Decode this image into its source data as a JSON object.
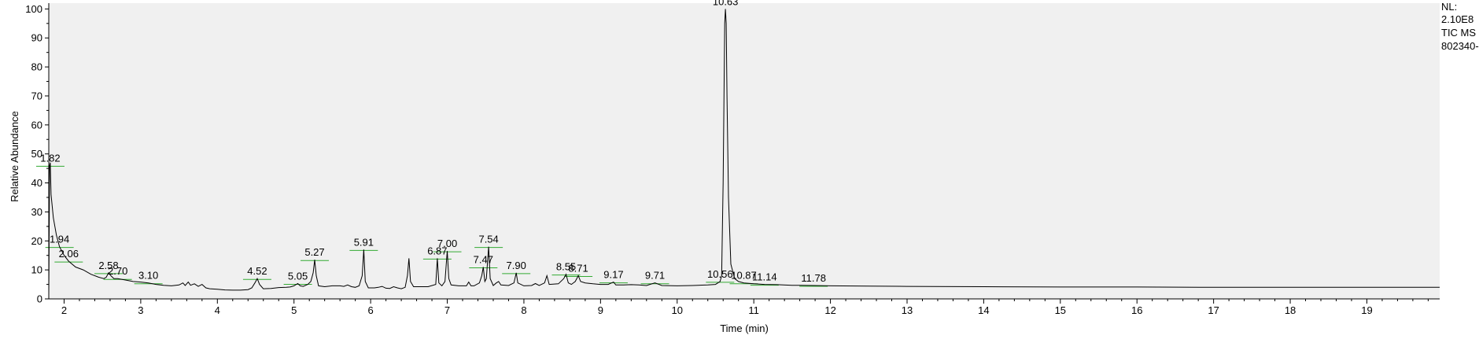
{
  "chart_data": {
    "type": "line",
    "xlabel": "Time (min)",
    "ylabel": "Relative Abundance",
    "xlim": [
      1.8,
      19.95
    ],
    "ylim": [
      0,
      102
    ],
    "x_ticks": [
      "2",
      "3",
      "4",
      "5",
      "6",
      "7",
      "8",
      "9",
      "10",
      "11",
      "12",
      "13",
      "14",
      "15",
      "16",
      "17",
      "18",
      "19"
    ],
    "y_ticks": [
      "0",
      "10",
      "20",
      "30",
      "40",
      "50",
      "60",
      "70",
      "80",
      "90",
      "100"
    ],
    "grid": false,
    "colors": {
      "plot_bg": "#f0f0f0",
      "trace": "#000000",
      "baseline": "#33aa33"
    },
    "info_lines": [
      "NL:",
      "2.10E8",
      "TIC  MS",
      "802340-"
    ],
    "series": [
      {
        "points": [
          [
            1.8,
            1
          ],
          [
            1.81,
            46
          ],
          [
            1.82,
            47
          ],
          [
            1.83,
            36
          ],
          [
            1.86,
            28
          ],
          [
            1.9,
            22
          ],
          [
            1.94,
            18
          ],
          [
            2.0,
            15
          ],
          [
            2.06,
            13
          ],
          [
            2.15,
            11
          ],
          [
            2.25,
            10
          ],
          [
            2.35,
            8.5
          ],
          [
            2.45,
            7.5
          ],
          [
            2.52,
            7
          ],
          [
            2.55,
            7.5
          ],
          [
            2.58,
            9
          ],
          [
            2.61,
            8
          ],
          [
            2.65,
            7
          ],
          [
            2.7,
            7
          ],
          [
            2.8,
            6.5
          ],
          [
            2.9,
            6
          ],
          [
            3.0,
            5.8
          ],
          [
            3.1,
            5.5
          ],
          [
            3.2,
            5
          ],
          [
            3.3,
            4.7
          ],
          [
            3.4,
            4.5
          ],
          [
            3.5,
            4.8
          ],
          [
            3.55,
            5.5
          ],
          [
            3.58,
            4.6
          ],
          [
            3.62,
            5.8
          ],
          [
            3.65,
            4.7
          ],
          [
            3.7,
            5.2
          ],
          [
            3.75,
            4.3
          ],
          [
            3.8,
            5
          ],
          [
            3.85,
            3.8
          ],
          [
            3.9,
            3.5
          ],
          [
            4.0,
            3.3
          ],
          [
            4.1,
            3.1
          ],
          [
            4.2,
            3
          ],
          [
            4.3,
            3
          ],
          [
            4.4,
            3.2
          ],
          [
            4.45,
            3.8
          ],
          [
            4.49,
            5.5
          ],
          [
            4.52,
            7
          ],
          [
            4.55,
            5
          ],
          [
            4.6,
            3.5
          ],
          [
            4.7,
            3.6
          ],
          [
            4.8,
            3.9
          ],
          [
            4.9,
            4
          ],
          [
            4.95,
            4.1
          ],
          [
            5.0,
            4.5
          ],
          [
            5.03,
            5
          ],
          [
            5.05,
            5.3
          ],
          [
            5.08,
            4.5
          ],
          [
            5.12,
            4.3
          ],
          [
            5.18,
            5
          ],
          [
            5.22,
            6
          ],
          [
            5.25,
            9
          ],
          [
            5.27,
            13.5
          ],
          [
            5.29,
            8
          ],
          [
            5.32,
            4.5
          ],
          [
            5.4,
            4.2
          ],
          [
            5.5,
            4.5
          ],
          [
            5.6,
            4.5
          ],
          [
            5.65,
            4.3
          ],
          [
            5.7,
            4.8
          ],
          [
            5.75,
            4.2
          ],
          [
            5.8,
            4
          ],
          [
            5.85,
            4.5
          ],
          [
            5.89,
            8
          ],
          [
            5.91,
            17
          ],
          [
            5.93,
            6
          ],
          [
            5.97,
            3.8
          ],
          [
            6.05,
            3.8
          ],
          [
            6.1,
            4
          ],
          [
            6.15,
            4.3
          ],
          [
            6.2,
            3.7
          ],
          [
            6.25,
            3.6
          ],
          [
            6.3,
            4.2
          ],
          [
            6.35,
            3.8
          ],
          [
            6.4,
            3.5
          ],
          [
            6.45,
            4
          ],
          [
            6.48,
            8
          ],
          [
            6.5,
            14
          ],
          [
            6.52,
            6
          ],
          [
            6.56,
            4.2
          ],
          [
            6.65,
            4.2
          ],
          [
            6.75,
            4.2
          ],
          [
            6.85,
            5
          ],
          [
            6.87,
            14
          ],
          [
            6.89,
            5.5
          ],
          [
            6.93,
            4.5
          ],
          [
            6.97,
            6
          ],
          [
            7.0,
            16.5
          ],
          [
            7.02,
            7
          ],
          [
            7.05,
            4.8
          ],
          [
            7.15,
            4.5
          ],
          [
            7.25,
            4.5
          ],
          [
            7.28,
            5.8
          ],
          [
            7.31,
            4.5
          ],
          [
            7.35,
            4.5
          ],
          [
            7.42,
            5.5
          ],
          [
            7.45,
            8
          ],
          [
            7.47,
            11
          ],
          [
            7.49,
            6
          ],
          [
            7.51,
            7
          ],
          [
            7.54,
            18
          ],
          [
            7.56,
            7
          ],
          [
            7.6,
            4.6
          ],
          [
            7.64,
            5.5
          ],
          [
            7.67,
            6
          ],
          [
            7.7,
            4.8
          ],
          [
            7.8,
            4.6
          ],
          [
            7.87,
            5.5
          ],
          [
            7.9,
            9
          ],
          [
            7.92,
            5.5
          ],
          [
            8.0,
            4.5
          ],
          [
            8.1,
            4.6
          ],
          [
            8.15,
            5.3
          ],
          [
            8.2,
            4.6
          ],
          [
            8.27,
            5.5
          ],
          [
            8.3,
            8
          ],
          [
            8.33,
            5
          ],
          [
            8.45,
            5.2
          ],
          [
            8.52,
            7
          ],
          [
            8.55,
            8.5
          ],
          [
            8.58,
            5.5
          ],
          [
            8.62,
            5
          ],
          [
            8.67,
            6
          ],
          [
            8.71,
            8
          ],
          [
            8.74,
            6
          ],
          [
            8.8,
            5.5
          ],
          [
            8.9,
            5.2
          ],
          [
            9.0,
            5
          ],
          [
            9.1,
            5
          ],
          [
            9.17,
            5.8
          ],
          [
            9.2,
            4.8
          ],
          [
            9.3,
            4.8
          ],
          [
            9.4,
            4.9
          ],
          [
            9.5,
            4.8
          ],
          [
            9.6,
            4.6
          ],
          [
            9.71,
            5.5
          ],
          [
            9.8,
            4.6
          ],
          [
            10.0,
            4.5
          ],
          [
            10.2,
            4.6
          ],
          [
            10.4,
            4.8
          ],
          [
            10.5,
            5
          ],
          [
            10.56,
            6
          ],
          [
            10.58,
            8
          ],
          [
            10.6,
            40
          ],
          [
            10.62,
            95
          ],
          [
            10.63,
            100
          ],
          [
            10.64,
            95
          ],
          [
            10.65,
            70
          ],
          [
            10.67,
            35
          ],
          [
            10.7,
            12
          ],
          [
            10.75,
            7
          ],
          [
            10.8,
            6
          ],
          [
            10.87,
            5.5
          ],
          [
            11.0,
            5.2
          ],
          [
            11.14,
            5
          ],
          [
            11.3,
            4.9
          ],
          [
            11.5,
            4.7
          ],
          [
            11.78,
            4.6
          ],
          [
            12.0,
            4.5
          ],
          [
            12.5,
            4.4
          ],
          [
            13.0,
            4.3
          ],
          [
            14.0,
            4.2
          ],
          [
            15.0,
            4.1
          ],
          [
            16.0,
            4.1
          ],
          [
            17.0,
            4.0
          ],
          [
            18.0,
            4.0
          ],
          [
            19.0,
            4.0
          ],
          [
            19.95,
            4.0
          ]
        ]
      }
    ],
    "peak_labels": [
      {
        "text": "1.82",
        "x": 1.82,
        "y": 46
      },
      {
        "text": "1.94",
        "x": 1.94,
        "y": 18
      },
      {
        "text": "2.06",
        "x": 2.06,
        "y": 13
      },
      {
        "text": "2.58",
        "x": 2.58,
        "y": 9
      },
      {
        "text": "2.70",
        "x": 2.7,
        "y": 7
      },
      {
        "text": "3.10",
        "x": 3.1,
        "y": 5.5
      },
      {
        "text": "4.52",
        "x": 4.52,
        "y": 7
      },
      {
        "text": "5.05",
        "x": 5.05,
        "y": 5.3
      },
      {
        "text": "5.27",
        "x": 5.27,
        "y": 13.5
      },
      {
        "text": "5.91",
        "x": 5.91,
        "y": 17
      },
      {
        "text": "6.87",
        "x": 6.87,
        "y": 14
      },
      {
        "text": "7.00",
        "x": 7.0,
        "y": 16.5
      },
      {
        "text": "7.47",
        "x": 7.47,
        "y": 11
      },
      {
        "text": "7.54",
        "x": 7.54,
        "y": 18
      },
      {
        "text": "7.90",
        "x": 7.9,
        "y": 9
      },
      {
        "text": "8.55",
        "x": 8.55,
        "y": 8.5
      },
      {
        "text": "8.71",
        "x": 8.71,
        "y": 8
      },
      {
        "text": "9.17",
        "x": 9.17,
        "y": 5.8
      },
      {
        "text": "9.71",
        "x": 9.71,
        "y": 5.5
      },
      {
        "text": "10.56",
        "x": 10.56,
        "y": 6
      },
      {
        "text": "10.63",
        "x": 10.63,
        "y": 100
      },
      {
        "text": "10.87",
        "x": 10.87,
        "y": 5.5
      },
      {
        "text": "11.14",
        "x": 11.14,
        "y": 5
      },
      {
        "text": "11.78",
        "x": 11.78,
        "y": 4.6
      }
    ]
  }
}
